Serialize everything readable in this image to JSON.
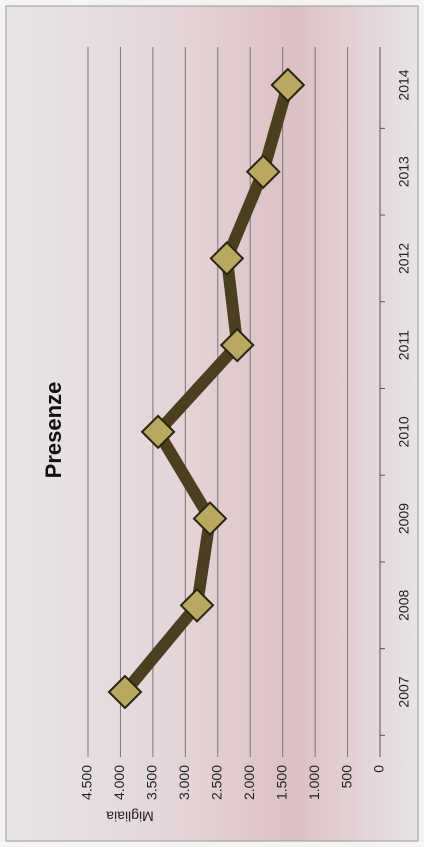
{
  "chart_data": {
    "type": "line",
    "title": "Presenze",
    "y_label": "Migliaia",
    "categories": [
      "2007",
      "2008",
      "2009",
      "2010",
      "2011",
      "2012",
      "2013",
      "2014"
    ],
    "values": [
      3930,
      2820,
      2620,
      3420,
      2200,
      2360,
      1800,
      1420
    ],
    "color": "#4a4020",
    "marker_color": "#b8a860",
    "ylim": [
      0,
      4500
    ],
    "yticks": [
      0,
      {
        "value": 500,
        "label": "500"
      },
      {
        "value": 1000,
        "label": "1.000"
      },
      {
        "value": 1500,
        "label": "1.500"
      },
      {
        "value": 2000,
        "label": "2.000"
      },
      {
        "value": 2500,
        "label": "2.500"
      },
      {
        "value": 3000,
        "label": "3.000"
      },
      {
        "value": 3500,
        "label": "3.500"
      },
      {
        "value": 4000,
        "label": "4.000"
      },
      {
        "value": 4500,
        "label": "4.500"
      }
    ],
    "grid": true
  }
}
